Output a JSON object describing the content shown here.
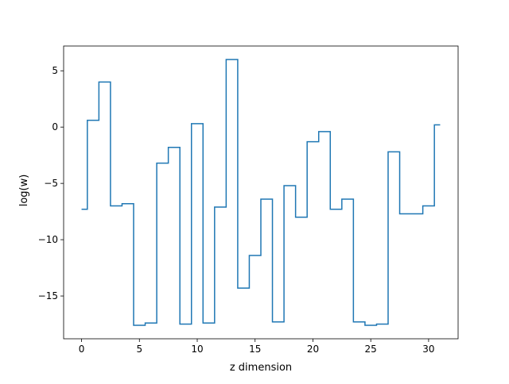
{
  "chart_data": {
    "type": "line",
    "drawstyle": "steps-mid",
    "title": "",
    "xlabel": "z dimension",
    "ylabel": "log(w)",
    "xlim": [
      -1.55,
      32.55
    ],
    "ylim": [
      -18.8,
      7.2
    ],
    "xticks": [
      0,
      5,
      10,
      15,
      20,
      25,
      30
    ],
    "yticks": [
      -15,
      -10,
      -5,
      0,
      5
    ],
    "grid": false,
    "series": [
      {
        "color": "#1f77b4",
        "x": [
          0,
          1,
          2,
          3,
          4,
          5,
          6,
          7,
          8,
          9,
          10,
          11,
          12,
          13,
          14,
          15,
          16,
          17,
          18,
          19,
          20,
          21,
          22,
          23,
          24,
          25,
          26,
          27,
          28,
          29,
          30,
          31
        ],
        "y": [
          -7.3,
          0.6,
          4.0,
          -7.0,
          -6.8,
          -17.6,
          -17.4,
          -3.2,
          -1.8,
          -17.5,
          0.3,
          -17.4,
          -7.1,
          6.0,
          -14.3,
          -11.4,
          -6.4,
          -17.3,
          -5.2,
          -8.0,
          -1.3,
          -0.4,
          -7.3,
          -6.4,
          -17.3,
          -17.6,
          -17.5,
          -2.2,
          -7.7,
          -7.7,
          -7.0,
          0.2
        ]
      }
    ]
  }
}
